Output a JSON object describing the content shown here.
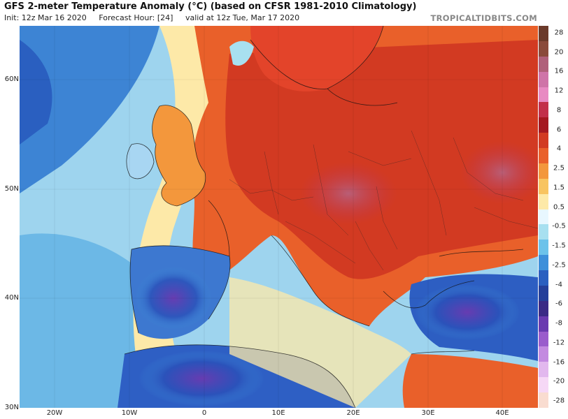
{
  "header": {
    "title": "GFS 2-meter Temperature Anomaly (°C) (based on CFSR 1981-2010 Climatology)",
    "init": "Init: 12z Mar 16 2020",
    "forecast_hour": "Forecast Hour: [24]",
    "valid": "valid at 12z Tue, Mar 17 2020",
    "source": "TROPICALTIDBITS.COM"
  },
  "map": {
    "lat_labels": [
      "60N",
      "50N",
      "40N",
      "30N"
    ],
    "lon_labels": [
      "20W",
      "10W",
      "0",
      "10E",
      "20E",
      "30E",
      "40E"
    ]
  },
  "colorbar": {
    "labels": [
      "28",
      "20",
      "16",
      "12",
      "8",
      "6",
      "4",
      "2.5",
      "1.5",
      "0.5",
      "-0.5",
      "-1.5",
      "-2.5",
      "-4",
      "-6",
      "-8",
      "-12",
      "-16",
      "-20",
      "-28"
    ],
    "colors": [
      "#6b3a2a",
      "#8a4a3a",
      "#b0607a",
      "#cf74a8",
      "#e88ac2",
      "#c2304a",
      "#a51820",
      "#d23a22",
      "#e9602a",
      "#f3973c",
      "#f8c460",
      "#fde9a8",
      "#e8f7ff",
      "#a8e0f0",
      "#6cc2ea",
      "#3d8fda",
      "#2a5fc0",
      "#243f9a",
      "#3a2a86",
      "#6a3ab0",
      "#9a5ccc",
      "#c38ae0",
      "#e2b8ee",
      "#f6d8f6",
      "#f9dcd0"
    ]
  }
}
